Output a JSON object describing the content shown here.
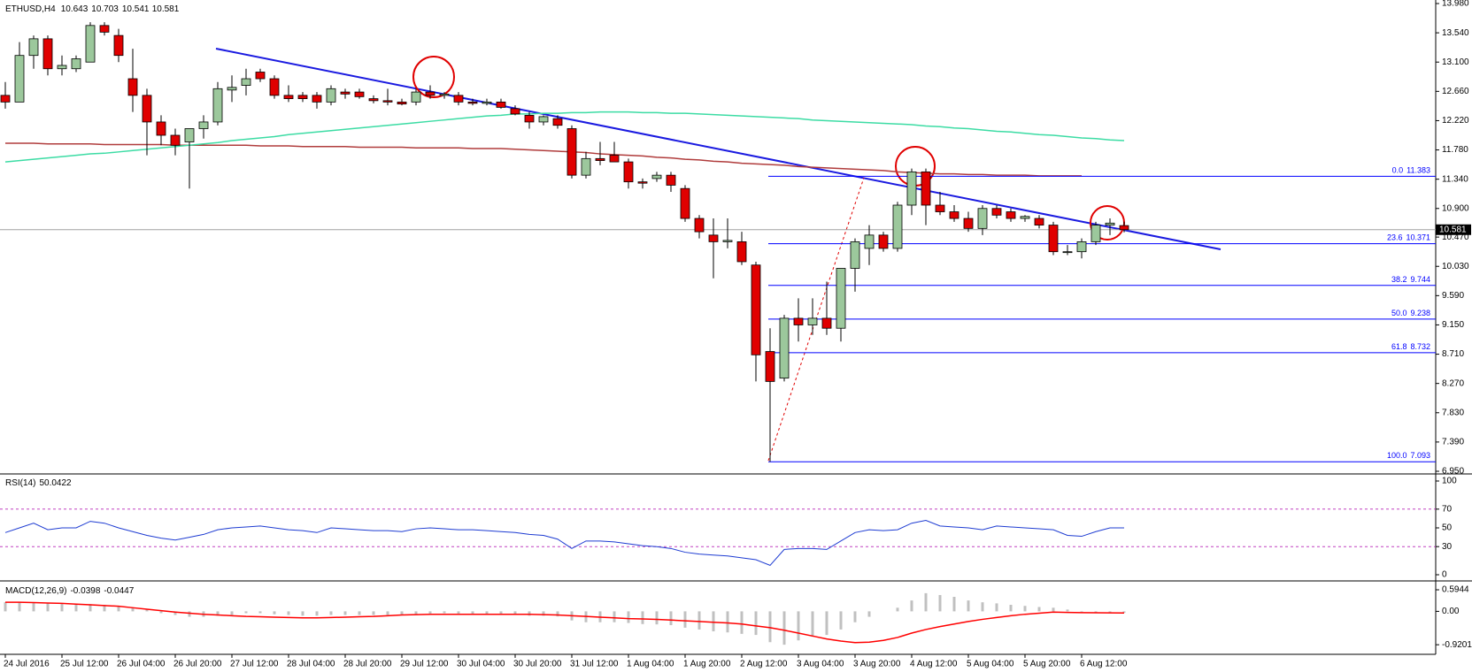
{
  "chart_data": [
    {
      "type": "candlestick",
      "title": "ETHUSD,H4",
      "categories": [
        "24 Jul 2016",
        null,
        null,
        null,
        "25 Jul 12:00",
        null,
        null,
        null,
        "26 Jul 04:00",
        null,
        null,
        null,
        "26 Jul 20:00",
        null,
        null,
        null,
        "27 Jul 12:00",
        null,
        null,
        null,
        "28 Jul 04:00",
        null,
        null,
        null,
        "28 Jul 20:00",
        null,
        null,
        null,
        "29 Jul 12:00",
        null,
        null,
        null,
        "30 Jul 04:00",
        null,
        null,
        null,
        "30 Jul 20:00",
        null,
        null,
        null,
        "31 Jul 12:00",
        null,
        null,
        null,
        "1 Aug 04:00",
        null,
        null,
        null,
        "1 Aug 20:00",
        null,
        null,
        null,
        "2 Aug 12:00",
        null,
        null,
        null,
        "3 Aug 04:00",
        null,
        null,
        null,
        "3 Aug 20:00",
        null,
        null,
        null,
        "4 Aug 12:00",
        null,
        null,
        null,
        "5 Aug 04:00",
        null,
        null,
        null,
        "5 Aug 20:00",
        null,
        null,
        null,
        "6 Aug 12:00",
        null,
        null,
        null
      ],
      "open": [
        12.6,
        12.5,
        13.2,
        13.45,
        13.0,
        13.0,
        13.1,
        13.65,
        13.5,
        12.85,
        12.6,
        12.2,
        12.0,
        11.9,
        12.1,
        12.2,
        12.68,
        12.75,
        12.95,
        12.85,
        12.6,
        12.6,
        12.6,
        12.5,
        12.65,
        12.65,
        12.55,
        12.52,
        12.5,
        12.5,
        12.65,
        12.6,
        12.6,
        12.5,
        12.48,
        12.5,
        12.4,
        12.3,
        12.2,
        12.25,
        12.1,
        11.4,
        11.65,
        11.7,
        11.6,
        11.3,
        11.35,
        11.4,
        11.2,
        10.75,
        10.5,
        10.4,
        10.4,
        10.05,
        8.75,
        8.35,
        9.25,
        9.15,
        9.25,
        9.1,
        10.0,
        10.3,
        10.5,
        10.3,
        10.95,
        11.45,
        10.95,
        10.85,
        10.75,
        10.6,
        10.9,
        10.85,
        10.75,
        10.75,
        10.65,
        10.25,
        10.25,
        10.4,
        10.65,
        10.643
      ],
      "high": [
        12.8,
        13.4,
        13.5,
        13.5,
        13.2,
        13.2,
        13.7,
        13.7,
        13.6,
        13.3,
        12.7,
        12.3,
        12.1,
        12.1,
        12.3,
        12.8,
        12.9,
        13.0,
        13.0,
        12.9,
        12.75,
        12.65,
        12.65,
        12.75,
        12.7,
        12.7,
        12.6,
        12.7,
        12.55,
        12.7,
        12.75,
        12.65,
        12.65,
        12.55,
        12.55,
        12.55,
        12.45,
        12.35,
        12.3,
        12.3,
        12.15,
        11.75,
        11.9,
        11.9,
        11.65,
        11.35,
        11.45,
        11.45,
        11.25,
        10.8,
        10.75,
        10.75,
        10.55,
        10.1,
        9.1,
        9.3,
        9.55,
        9.55,
        9.8,
        10.0,
        10.45,
        10.65,
        10.55,
        11.0,
        11.5,
        11.5,
        11.15,
        10.95,
        10.85,
        10.95,
        10.95,
        10.9,
        10.8,
        10.8,
        10.7,
        10.35,
        10.45,
        10.7,
        10.75,
        10.703
      ],
      "low": [
        12.4,
        12.5,
        13.0,
        12.9,
        12.9,
        12.95,
        13.1,
        13.5,
        13.1,
        12.35,
        11.7,
        11.85,
        11.7,
        11.2,
        11.95,
        12.15,
        12.5,
        12.6,
        12.8,
        12.55,
        12.5,
        12.5,
        12.4,
        12.45,
        12.55,
        12.55,
        12.48,
        12.45,
        12.45,
        12.45,
        12.55,
        12.55,
        12.45,
        12.45,
        12.45,
        12.4,
        12.3,
        12.1,
        12.15,
        12.1,
        11.35,
        11.35,
        11.55,
        11.6,
        11.2,
        11.2,
        11.3,
        11.15,
        10.7,
        10.45,
        9.85,
        10.3,
        10.05,
        8.3,
        7.093,
        8.3,
        8.9,
        9.0,
        9.0,
        8.9,
        9.65,
        10.05,
        10.25,
        10.25,
        10.8,
        10.65,
        10.8,
        10.7,
        10.55,
        10.5,
        10.75,
        10.7,
        10.7,
        10.6,
        10.2,
        10.2,
        10.15,
        10.35,
        10.5,
        10.541
      ],
      "close": [
        12.5,
        13.2,
        13.45,
        13.0,
        13.05,
        13.15,
        13.65,
        13.55,
        13.2,
        12.6,
        12.2,
        12.0,
        11.85,
        12.1,
        12.2,
        12.7,
        12.72,
        12.85,
        12.85,
        12.6,
        12.55,
        12.55,
        12.5,
        12.7,
        12.62,
        12.58,
        12.52,
        12.5,
        12.47,
        12.65,
        12.6,
        12.62,
        12.5,
        12.48,
        12.5,
        12.42,
        12.32,
        12.2,
        12.28,
        12.15,
        11.4,
        11.65,
        11.62,
        11.6,
        11.3,
        11.28,
        11.4,
        11.25,
        10.75,
        10.55,
        10.4,
        10.42,
        10.1,
        8.7,
        8.3,
        9.25,
        9.15,
        9.25,
        9.1,
        10.0,
        10.4,
        10.5,
        10.3,
        10.95,
        11.45,
        10.95,
        10.85,
        10.75,
        10.6,
        10.9,
        10.8,
        10.75,
        10.78,
        10.65,
        10.25,
        10.25,
        10.4,
        10.65,
        10.68,
        10.581
      ],
      "up_color": "#9cc89c",
      "down_color": "#e00000",
      "overlays": [
        {
          "color": "#b03c3c",
          "values": [
            11.88,
            11.88,
            11.88,
            11.87,
            11.87,
            11.87,
            11.87,
            11.86,
            11.86,
            11.86,
            11.86,
            11.86,
            11.85,
            11.85,
            11.85,
            11.85,
            11.85,
            11.85,
            11.84,
            11.84,
            11.84,
            11.83,
            11.83,
            11.83,
            11.83,
            11.82,
            11.82,
            11.82,
            11.82,
            11.81,
            11.81,
            11.81,
            11.81,
            11.8,
            11.8,
            11.8,
            11.79,
            11.78,
            11.77,
            11.76,
            11.75,
            11.74,
            11.72,
            11.71,
            11.7,
            11.69,
            11.67,
            11.66,
            11.64,
            11.63,
            11.61,
            11.6,
            11.58,
            11.57,
            11.56,
            11.55,
            11.53,
            11.52,
            11.51,
            11.5,
            11.49,
            11.48,
            11.47,
            11.45,
            11.44,
            11.43,
            11.42,
            11.42,
            11.41,
            11.41,
            11.4,
            11.4,
            11.4,
            11.39,
            11.39,
            11.39,
            11.39,
            null,
            null,
            null
          ]
        },
        {
          "color": "#3cdca4",
          "values": [
            11.6,
            11.62,
            11.64,
            11.66,
            11.68,
            11.7,
            11.72,
            11.73,
            11.75,
            11.77,
            11.79,
            11.81,
            11.83,
            11.85,
            11.87,
            11.89,
            11.92,
            11.94,
            11.96,
            11.98,
            12.01,
            12.03,
            12.05,
            12.07,
            12.09,
            12.11,
            12.13,
            12.15,
            12.17,
            12.19,
            12.21,
            12.23,
            12.25,
            12.27,
            12.29,
            12.3,
            12.32,
            12.32,
            12.33,
            12.33,
            12.34,
            12.34,
            12.35,
            12.35,
            12.35,
            12.34,
            12.34,
            12.33,
            12.33,
            12.32,
            12.31,
            12.3,
            12.29,
            12.28,
            12.27,
            12.26,
            12.25,
            12.23,
            12.22,
            12.21,
            12.2,
            12.19,
            12.18,
            12.17,
            12.16,
            12.14,
            12.13,
            12.11,
            12.1,
            12.08,
            12.06,
            12.05,
            12.03,
            12.01,
            12.0,
            11.98,
            11.96,
            11.95,
            11.93,
            11.92
          ]
        }
      ],
      "fibonacci": [
        {
          "level": "0.0",
          "price": 11.383
        },
        {
          "level": "23.6",
          "price": 10.371
        },
        {
          "level": "38.2",
          "price": 9.744
        },
        {
          "level": "50.0",
          "price": 9.238
        },
        {
          "level": "61.8",
          "price": 8.732
        },
        {
          "level": "100.0",
          "price": 7.093
        }
      ],
      "fib_color": "#0000ff",
      "ylim": [
        6.95,
        13.98
      ],
      "yticks": [
        {
          "value": 13.98,
          "label": "13.980"
        },
        {
          "value": 13.54,
          "label": "13.540"
        },
        {
          "value": 13.1,
          "label": "13.100"
        },
        {
          "value": 12.66,
          "label": "12.660"
        },
        {
          "value": 12.22,
          "label": "12.220"
        },
        {
          "value": 11.78,
          "label": "11.780"
        },
        {
          "value": 11.34,
          "label": "11.340"
        },
        {
          "value": 10.9,
          "label": "10.900"
        },
        {
          "value": 10.47,
          "label": "10.470"
        },
        {
          "value": 10.03,
          "label": "10.030"
        },
        {
          "value": 9.59,
          "label": "9.590"
        },
        {
          "value": 9.15,
          "label": "9.150"
        },
        {
          "value": 8.71,
          "label": "8.710"
        },
        {
          "value": 8.27,
          "label": "8.270"
        },
        {
          "value": 7.83,
          "label": "7.830"
        },
        {
          "value": 7.39,
          "label": "7.390"
        },
        {
          "value": 6.95,
          "label": "6.950"
        }
      ]
    },
    {
      "type": "line",
      "title": "RSI(14)",
      "color": "#1e3cd2",
      "values": [
        45,
        50,
        55,
        48,
        50,
        50,
        57,
        55,
        50,
        46,
        42,
        39,
        37,
        40,
        43,
        48,
        50,
        51,
        52,
        50,
        48,
        47,
        45,
        50,
        49,
        48,
        47,
        47,
        46,
        49,
        50,
        49,
        48,
        48,
        47,
        46,
        45,
        43,
        42,
        38,
        28,
        36,
        36,
        35,
        33,
        31,
        30,
        28,
        24,
        22,
        21,
        20,
        18,
        16,
        10,
        27,
        28,
        28,
        27,
        36,
        45,
        48,
        47,
        48,
        55,
        58,
        52,
        51,
        50,
        48,
        52,
        51,
        50,
        49,
        48,
        42,
        41,
        46,
        50,
        50.0422
      ],
      "levels": [
        70,
        30
      ],
      "level_color": "#c040c0",
      "ylim": [
        0,
        100
      ],
      "yticks": [
        100,
        70,
        50,
        30,
        0
      ]
    },
    {
      "type": "macd",
      "title": "MACD(12,26,9)",
      "hist_color": "#c0c0c0",
      "signal_color": "#ff0000",
      "hist": [
        0.25,
        0.25,
        0.24,
        0.22,
        0.22,
        0.2,
        0.2,
        0.18,
        0.15,
        0.1,
        0.05,
        -0.05,
        -0.1,
        -0.15,
        -0.15,
        -0.12,
        -0.1,
        -0.05,
        -0.05,
        -0.08,
        -0.1,
        -0.12,
        -0.12,
        -0.1,
        -0.1,
        -0.1,
        -0.1,
        -0.1,
        -0.1,
        -0.08,
        -0.06,
        -0.05,
        -0.06,
        -0.07,
        -0.07,
        -0.08,
        -0.1,
        -0.12,
        -0.12,
        -0.14,
        -0.25,
        -0.3,
        -0.3,
        -0.3,
        -0.32,
        -0.35,
        -0.36,
        -0.38,
        -0.45,
        -0.5,
        -0.55,
        -0.58,
        -0.62,
        -0.65,
        -0.85,
        -0.92,
        -0.8,
        -0.7,
        -0.65,
        -0.5,
        -0.3,
        -0.15,
        0.0,
        0.1,
        0.3,
        0.5,
        0.45,
        0.4,
        0.3,
        0.25,
        0.22,
        0.18,
        0.15,
        0.12,
        0.1,
        0.05,
        -0.02,
        -0.03,
        -0.035,
        -0.0398
      ],
      "signal": [
        0.25,
        0.25,
        0.24,
        0.23,
        0.22,
        0.2,
        0.18,
        0.16,
        0.14,
        0.1,
        0.06,
        0.02,
        -0.02,
        -0.05,
        -0.08,
        -0.1,
        -0.12,
        -0.14,
        -0.15,
        -0.16,
        -0.17,
        -0.18,
        -0.18,
        -0.17,
        -0.16,
        -0.15,
        -0.14,
        -0.12,
        -0.1,
        -0.09,
        -0.08,
        -0.08,
        -0.08,
        -0.08,
        -0.08,
        -0.08,
        -0.08,
        -0.08,
        -0.09,
        -0.1,
        -0.12,
        -0.14,
        -0.16,
        -0.18,
        -0.2,
        -0.21,
        -0.22,
        -0.24,
        -0.26,
        -0.28,
        -0.3,
        -0.32,
        -0.35,
        -0.4,
        -0.45,
        -0.52,
        -0.6,
        -0.68,
        -0.76,
        -0.82,
        -0.86,
        -0.85,
        -0.8,
        -0.72,
        -0.6,
        -0.5,
        -0.42,
        -0.35,
        -0.28,
        -0.22,
        -0.17,
        -0.12,
        -0.08,
        -0.05,
        -0.02,
        -0.03,
        -0.035,
        -0.04,
        -0.043,
        -0.0447
      ],
      "ylim": [
        -1.16,
        0.79
      ],
      "yticks": [
        0.5944,
        {
          "value": 0,
          "label": "0.00"
        },
        -0.9201
      ]
    }
  ]
}
